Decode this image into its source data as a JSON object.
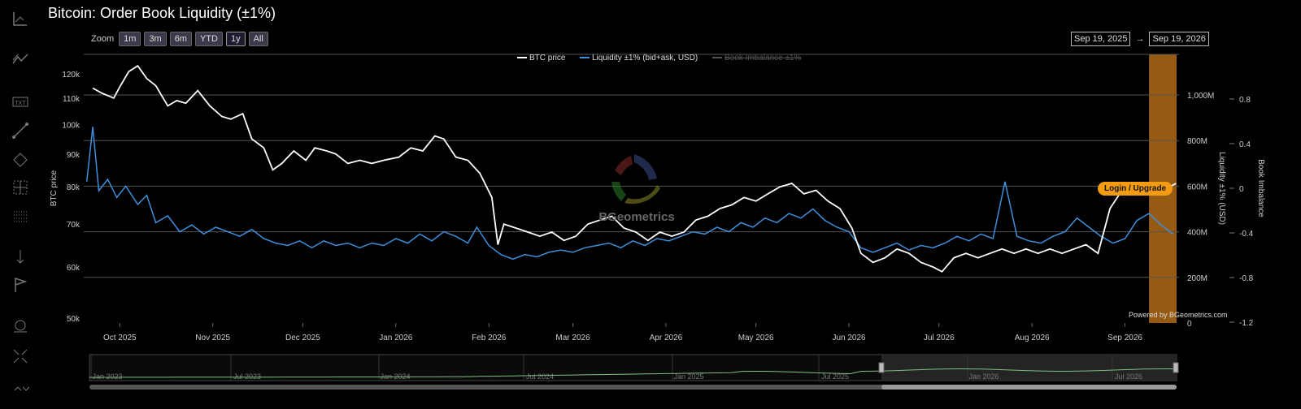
{
  "title": "Bitcoin: Order Book Liquidity (±1%)",
  "zoom": {
    "label": "Zoom",
    "buttons": [
      "1m",
      "3m",
      "6m",
      "YTD",
      "1y",
      "All"
    ],
    "active": "1y"
  },
  "date_range": {
    "from": "Sep 19, 2025",
    "arrow": "→",
    "to": "Sep 19, 2026"
  },
  "toolbar_icons": [
    "line-chart-icon",
    "trend-icon",
    "text-icon",
    "line-draw-icon",
    "shapes-icon",
    "crosshair-box-icon",
    "grid-icon",
    "measure-icon",
    "flag-icon",
    "zoom-icon",
    "fullscreen-icon",
    "collapse-icon"
  ],
  "login_button": "Login / Upgrade",
  "powered_by": "Powered by BGeometrics.com",
  "watermark": "BGeometrics",
  "colors": {
    "price": "#ffffff",
    "liquidity": "#3d8fdb",
    "imbalance": "#555555",
    "highlight": "#c87a1a",
    "login": "#f39c12",
    "navigator": "#7fbf7f"
  },
  "chart_data": {
    "type": "line",
    "series": [
      {
        "name": "BTC price",
        "axis": "left",
        "points": [
          [
            "2025-09-22",
            114000
          ],
          [
            "2025-09-25",
            112000
          ],
          [
            "2025-09-29",
            110000
          ],
          [
            "2025-10-01",
            114500
          ],
          [
            "2025-10-04",
            121000
          ],
          [
            "2025-10-07",
            123500
          ],
          [
            "2025-10-10",
            118000
          ],
          [
            "2025-10-13",
            115000
          ],
          [
            "2025-10-17",
            107000
          ],
          [
            "2025-10-20",
            109000
          ],
          [
            "2025-10-23",
            108000
          ],
          [
            "2025-10-27",
            113000
          ],
          [
            "2025-10-31",
            107000
          ],
          [
            "2025-11-04",
            103000
          ],
          [
            "2025-11-07",
            102000
          ],
          [
            "2025-11-11",
            104000
          ],
          [
            "2025-11-14",
            95000
          ],
          [
            "2025-11-18",
            92000
          ],
          [
            "2025-11-21",
            85000
          ],
          [
            "2025-11-24",
            87000
          ],
          [
            "2025-11-28",
            91000
          ],
          [
            "2025-12-02",
            88000
          ],
          [
            "2025-12-05",
            92000
          ],
          [
            "2025-12-09",
            91000
          ],
          [
            "2025-12-12",
            90000
          ],
          [
            "2025-12-16",
            87000
          ],
          [
            "2025-12-20",
            88000
          ],
          [
            "2025-12-24",
            87000
          ],
          [
            "2025-12-28",
            88000
          ],
          [
            "2026-01-02",
            89000
          ],
          [
            "2026-01-06",
            92000
          ],
          [
            "2026-01-10",
            91000
          ],
          [
            "2026-01-14",
            96000
          ],
          [
            "2026-01-17",
            95000
          ],
          [
            "2026-01-21",
            89000
          ],
          [
            "2026-01-25",
            88000
          ],
          [
            "2026-01-29",
            84000
          ],
          [
            "2026-02-02",
            77000
          ],
          [
            "2026-02-04",
            65000
          ],
          [
            "2026-02-06",
            70000
          ],
          [
            "2026-02-10",
            69000
          ],
          [
            "2026-02-14",
            68000
          ],
          [
            "2026-02-18",
            67000
          ],
          [
            "2026-02-22",
            68000
          ],
          [
            "2026-02-26",
            66000
          ],
          [
            "2026-03-02",
            67000
          ],
          [
            "2026-03-06",
            70000
          ],
          [
            "2026-03-10",
            71000
          ],
          [
            "2026-03-14",
            72000
          ],
          [
            "2026-03-18",
            69000
          ],
          [
            "2026-03-22",
            68000
          ],
          [
            "2026-03-26",
            66000
          ],
          [
            "2026-03-30",
            68000
          ],
          [
            "2026-04-03",
            67000
          ],
          [
            "2026-04-07",
            68000
          ],
          [
            "2026-04-11",
            71000
          ],
          [
            "2026-04-15",
            72000
          ],
          [
            "2026-04-19",
            74000
          ],
          [
            "2026-04-23",
            75000
          ],
          [
            "2026-04-27",
            77000
          ],
          [
            "2026-05-01",
            76000
          ],
          [
            "2026-05-05",
            78000
          ],
          [
            "2026-05-09",
            80000
          ],
          [
            "2026-05-13",
            81000
          ],
          [
            "2026-05-17",
            78000
          ],
          [
            "2026-05-21",
            79000
          ],
          [
            "2026-05-25",
            76000
          ],
          [
            "2026-05-29",
            74000
          ],
          [
            "2026-06-02",
            69000
          ],
          [
            "2026-06-05",
            63000
          ],
          [
            "2026-06-09",
            61000
          ],
          [
            "2026-06-13",
            62000
          ],
          [
            "2026-06-17",
            64000
          ],
          [
            "2026-06-21",
            63000
          ],
          [
            "2026-06-25",
            61000
          ],
          [
            "2026-06-29",
            60000
          ],
          [
            "2026-07-02",
            59000
          ],
          [
            "2026-07-06",
            62000
          ],
          [
            "2026-07-10",
            63000
          ],
          [
            "2026-07-14",
            62000
          ],
          [
            "2026-07-18",
            63000
          ],
          [
            "2026-07-22",
            64000
          ],
          [
            "2026-07-26",
            63000
          ],
          [
            "2026-07-30",
            64000
          ],
          [
            "2026-08-03",
            63000
          ],
          [
            "2026-08-07",
            64000
          ],
          [
            "2026-08-11",
            63000
          ],
          [
            "2026-08-15",
            64000
          ],
          [
            "2026-08-19",
            65000
          ],
          [
            "2026-08-23",
            63000
          ],
          [
            "2026-08-27",
            74000
          ],
          [
            "2026-08-31",
            79000
          ],
          [
            "2026-09-04",
            78000
          ],
          [
            "2026-09-08",
            79000
          ],
          [
            "2026-09-12",
            78000
          ],
          [
            "2026-09-16",
            80000
          ],
          [
            "2026-09-18",
            81000
          ]
        ]
      },
      {
        "name": "Liquidity ±1% (bid+ask, USD)",
        "axis": "right",
        "points": [
          [
            "2025-09-20",
            620
          ],
          [
            "2025-09-22",
            860
          ],
          [
            "2025-09-24",
            580
          ],
          [
            "2025-09-27",
            630
          ],
          [
            "2025-09-30",
            550
          ],
          [
            "2025-10-03",
            600
          ],
          [
            "2025-10-07",
            520
          ],
          [
            "2025-10-10",
            560
          ],
          [
            "2025-10-13",
            440
          ],
          [
            "2025-10-17",
            470
          ],
          [
            "2025-10-21",
            400
          ],
          [
            "2025-10-25",
            430
          ],
          [
            "2025-10-29",
            390
          ],
          [
            "2025-11-02",
            420
          ],
          [
            "2025-11-06",
            400
          ],
          [
            "2025-11-10",
            380
          ],
          [
            "2025-11-14",
            410
          ],
          [
            "2025-11-18",
            370
          ],
          [
            "2025-11-22",
            350
          ],
          [
            "2025-11-26",
            340
          ],
          [
            "2025-11-30",
            360
          ],
          [
            "2025-12-04",
            330
          ],
          [
            "2025-12-08",
            360
          ],
          [
            "2025-12-12",
            340
          ],
          [
            "2025-12-16",
            350
          ],
          [
            "2025-12-20",
            330
          ],
          [
            "2025-12-24",
            350
          ],
          [
            "2025-12-28",
            340
          ],
          [
            "2026-01-01",
            370
          ],
          [
            "2026-01-05",
            350
          ],
          [
            "2026-01-09",
            390
          ],
          [
            "2026-01-13",
            360
          ],
          [
            "2026-01-17",
            400
          ],
          [
            "2026-01-21",
            380
          ],
          [
            "2026-01-25",
            350
          ],
          [
            "2026-01-28",
            420
          ],
          [
            "2026-02-01",
            340
          ],
          [
            "2026-02-05",
            300
          ],
          [
            "2026-02-09",
            280
          ],
          [
            "2026-02-13",
            300
          ],
          [
            "2026-02-17",
            290
          ],
          [
            "2026-02-21",
            310
          ],
          [
            "2026-02-25",
            320
          ],
          [
            "2026-03-01",
            310
          ],
          [
            "2026-03-05",
            330
          ],
          [
            "2026-03-09",
            340
          ],
          [
            "2026-03-13",
            350
          ],
          [
            "2026-03-17",
            330
          ],
          [
            "2026-03-21",
            360
          ],
          [
            "2026-03-25",
            340
          ],
          [
            "2026-03-29",
            370
          ],
          [
            "2026-04-02",
            360
          ],
          [
            "2026-04-06",
            380
          ],
          [
            "2026-04-10",
            400
          ],
          [
            "2026-04-14",
            390
          ],
          [
            "2026-04-18",
            420
          ],
          [
            "2026-04-22",
            400
          ],
          [
            "2026-04-26",
            440
          ],
          [
            "2026-04-30",
            420
          ],
          [
            "2026-05-04",
            460
          ],
          [
            "2026-05-08",
            440
          ],
          [
            "2026-05-12",
            480
          ],
          [
            "2026-05-16",
            460
          ],
          [
            "2026-05-20",
            500
          ],
          [
            "2026-05-24",
            450
          ],
          [
            "2026-05-28",
            420
          ],
          [
            "2026-06-01",
            400
          ],
          [
            "2026-06-05",
            330
          ],
          [
            "2026-06-09",
            310
          ],
          [
            "2026-06-13",
            330
          ],
          [
            "2026-06-17",
            350
          ],
          [
            "2026-06-21",
            320
          ],
          [
            "2026-06-25",
            340
          ],
          [
            "2026-06-29",
            330
          ],
          [
            "2026-07-03",
            350
          ],
          [
            "2026-07-07",
            380
          ],
          [
            "2026-07-11",
            360
          ],
          [
            "2026-07-15",
            390
          ],
          [
            "2026-07-19",
            370
          ],
          [
            "2026-07-23",
            620
          ],
          [
            "2026-07-27",
            380
          ],
          [
            "2026-07-31",
            360
          ],
          [
            "2026-08-04",
            350
          ],
          [
            "2026-08-08",
            380
          ],
          [
            "2026-08-12",
            400
          ],
          [
            "2026-08-16",
            460
          ],
          [
            "2026-08-20",
            420
          ],
          [
            "2026-08-24",
            380
          ],
          [
            "2026-08-28",
            350
          ],
          [
            "2026-09-01",
            370
          ],
          [
            "2026-09-05",
            450
          ],
          [
            "2026-09-09",
            480
          ],
          [
            "2026-09-13",
            430
          ],
          [
            "2026-09-17",
            390
          ]
        ]
      },
      {
        "name": "Book Imbalance ±1%",
        "axis": "imbalance",
        "hidden": true,
        "points": []
      }
    ],
    "x_ticks": [
      "Oct 2025",
      "Nov 2025",
      "Dec 2025",
      "Jan 2026",
      "Feb 2026",
      "Mar 2026",
      "Apr 2026",
      "May 2026",
      "Jun 2026",
      "Jul 2026",
      "Aug 2026",
      "Sep 2026"
    ],
    "x_tick_dates": [
      "2025-10-01",
      "2025-11-01",
      "2025-12-01",
      "2026-01-01",
      "2026-02-01",
      "2026-03-01",
      "2026-04-01",
      "2026-05-01",
      "2026-06-01",
      "2026-07-01",
      "2026-08-01",
      "2026-09-01"
    ],
    "xlim": [
      "2025-09-19",
      "2026-09-19"
    ],
    "y_left": {
      "label": "BTC price",
      "scale": "log",
      "ticks": [
        [
          120000,
          "120k"
        ],
        [
          110000,
          "110k"
        ],
        [
          100000,
          "100k"
        ],
        [
          90000,
          "90k"
        ],
        [
          80000,
          "80k"
        ],
        [
          70000,
          "70k"
        ],
        [
          60000,
          "60k"
        ],
        [
          50000,
          "50k"
        ]
      ]
    },
    "y_right": {
      "label": "Liquidity ±1% (USD)",
      "range": [
        0,
        1200
      ],
      "ticks": [
        [
          1000,
          "1,000M"
        ],
        [
          800,
          "800M"
        ],
        [
          600,
          "600M"
        ],
        [
          400,
          "400M"
        ],
        [
          200,
          "200M"
        ],
        [
          0,
          "0"
        ]
      ]
    },
    "y_imbalance": {
      "label": "Book Imbalance",
      "range": [
        -1.2,
        1.0
      ],
      "ticks": [
        [
          0.8,
          "0.8"
        ],
        [
          0.4,
          "0.4"
        ],
        [
          0,
          "0"
        ],
        [
          -0.4,
          "-0.4"
        ],
        [
          -0.8,
          "-0.8"
        ],
        [
          -1.2,
          "-1.2"
        ]
      ]
    },
    "legend": {
      "placement": "top-center"
    },
    "highlight_band": {
      "from": "2026-09-09",
      "to": "2026-09-19"
    },
    "navigator": {
      "labels": [
        "Jan 2023",
        "Jul 2023",
        "Jan 2024",
        "Jul 2024",
        "Jan 2025",
        "Jul 2025",
        "Jan 2026",
        "Jul 2026"
      ],
      "selected_from": "2025-09-19",
      "selected_to": "2026-09-19"
    },
    "grid": true
  }
}
